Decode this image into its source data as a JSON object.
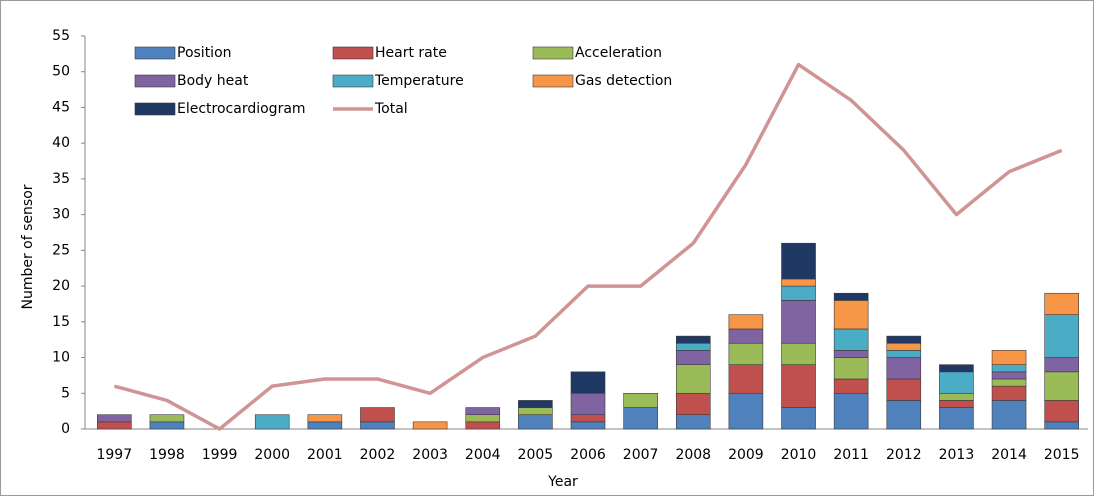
{
  "chart_data": {
    "type": "bar",
    "stacked": true,
    "x_label": "Year",
    "y_label": "Number of sensor",
    "categories": [
      "1997",
      "1998",
      "1999",
      "2000",
      "2001",
      "2002",
      "2003",
      "2004",
      "2005",
      "2006",
      "2007",
      "2008",
      "2009",
      "2010",
      "2011",
      "2012",
      "2013",
      "2014",
      "2015"
    ],
    "series": [
      {
        "name": "Position",
        "color": "#4f81bd",
        "values": [
          0,
          1,
          0,
          0,
          1,
          1,
          0,
          0,
          2,
          1,
          3,
          2,
          5,
          3,
          5,
          4,
          3,
          4,
          1
        ]
      },
      {
        "name": "Heart rate",
        "color": "#c0504d",
        "values": [
          1,
          0,
          0,
          0,
          0,
          2,
          0,
          1,
          0,
          1,
          0,
          3,
          4,
          6,
          2,
          3,
          1,
          2,
          3
        ]
      },
      {
        "name": "Acceleration",
        "color": "#9bbb59",
        "values": [
          0,
          1,
          0,
          0,
          0,
          0,
          0,
          1,
          1,
          0,
          2,
          4,
          3,
          3,
          3,
          0,
          1,
          1,
          4
        ]
      },
      {
        "name": "Body heat",
        "color": "#8064a2",
        "values": [
          1,
          0,
          0,
          0,
          0,
          0,
          0,
          1,
          0,
          3,
          0,
          2,
          2,
          6,
          1,
          3,
          0,
          1,
          2
        ]
      },
      {
        "name": "Temperature",
        "color": "#4bacc6",
        "values": [
          0,
          0,
          0,
          2,
          0,
          0,
          0,
          0,
          0,
          0,
          0,
          1,
          0,
          2,
          3,
          1,
          3,
          1,
          6
        ]
      },
      {
        "name": "Gas detection",
        "color": "#f79646",
        "values": [
          0,
          0,
          0,
          0,
          1,
          0,
          1,
          0,
          0,
          0,
          0,
          0,
          2,
          1,
          4,
          1,
          0,
          2,
          3
        ]
      },
      {
        "name": "Electrocardiogram",
        "color": "#1f3864",
        "values": [
          0,
          0,
          0,
          0,
          0,
          0,
          0,
          0,
          1,
          3,
          0,
          1,
          0,
          5,
          1,
          1,
          1,
          0,
          0
        ]
      },
      {
        "name": "Total",
        "type": "line",
        "color": "#d09494",
        "values": [
          6,
          4,
          0,
          6,
          7,
          7,
          5,
          10,
          13,
          20,
          20,
          26,
          37,
          51,
          46,
          39,
          30,
          36,
          39
        ]
      }
    ],
    "ylim": [
      0,
      55
    ],
    "yticks": [
      0,
      5,
      10,
      15,
      20,
      25,
      30,
      35,
      40,
      45,
      50,
      55
    ],
    "grid": false
  }
}
